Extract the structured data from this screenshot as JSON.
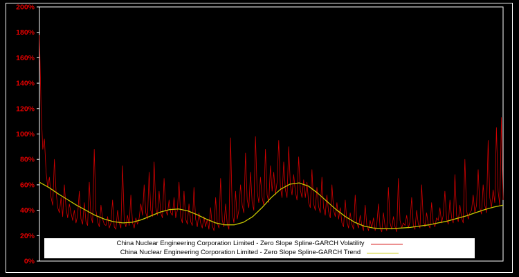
{
  "figure": {
    "background": "#000000",
    "frame_color": "#ffffff",
    "tick_label_color": "#e60000"
  },
  "chart_data": {
    "type": "line",
    "title": "",
    "xlabel": "",
    "ylabel": "",
    "ylim": [
      0,
      200
    ],
    "y_ticks": [
      "0%",
      "20%",
      "40%",
      "60%",
      "80%",
      "100%",
      "120%",
      "140%",
      "160%",
      "180%",
      "200%"
    ],
    "x_axis_visible_labels": [],
    "grid": false,
    "legend_position": "bottom-center",
    "series": [
      {
        "name": "China Nuclear Engineering Corporation Limited - Zero Slope Spline-GARCH Volatility",
        "color": "#d40000",
        "line_width": 0.8,
        "values": [
          178,
          120,
          88,
          96,
          70,
          58,
          66,
          50,
          44,
          80,
          55,
          42,
          38,
          50,
          35,
          60,
          42,
          34,
          45,
          38,
          32,
          40,
          30,
          36,
          55,
          33,
          29,
          46,
          31,
          28,
          62,
          35,
          30,
          88,
          40,
          31,
          27,
          44,
          33,
          29,
          28,
          35,
          26,
          30,
          48,
          27,
          25,
          40,
          30,
          26,
          75,
          32,
          27,
          36,
          28,
          52,
          30,
          26,
          34,
          29,
          34,
          45,
          36,
          60,
          38,
          33,
          70,
          40,
          35,
          78,
          42,
          36,
          55,
          38,
          34,
          65,
          40,
          36,
          48,
          38,
          36,
          50,
          34,
          40,
          62,
          35,
          30,
          55,
          33,
          29,
          45,
          31,
          28,
          58,
          33,
          27,
          38,
          30,
          26,
          35,
          27,
          33,
          25,
          42,
          28,
          24,
          50,
          30,
          26,
          65,
          32,
          27,
          45,
          29,
          25,
          97,
          38,
          30,
          55,
          33,
          40,
          60,
          44,
          38,
          85,
          48,
          42,
          70,
          46,
          40,
          98,
          55,
          46,
          66,
          50,
          44,
          88,
          52,
          46,
          75,
          55,
          70,
          52,
          62,
          95,
          58,
          50,
          78,
          56,
          50,
          90,
          60,
          52,
          68,
          55,
          48,
          82,
          56,
          50,
          64,
          50,
          62,
          46,
          42,
          72,
          45,
          40,
          58,
          43,
          38,
          66,
          42,
          36,
          52,
          39,
          34,
          60,
          40,
          35,
          46,
          33,
          42,
          30,
          27,
          48,
          31,
          26,
          38,
          29,
          25,
          52,
          30,
          26,
          36,
          28,
          24,
          44,
          28,
          24,
          32,
          26,
          34,
          24,
          29,
          45,
          26,
          23,
          38,
          27,
          24,
          58,
          30,
          25,
          35,
          27,
          23,
          65,
          32,
          26,
          30,
          28,
          36,
          26,
          31,
          50,
          28,
          25,
          40,
          29,
          26,
          60,
          32,
          27,
          38,
          29,
          26,
          46,
          30,
          27,
          34,
          32,
          42,
          30,
          36,
          55,
          33,
          29,
          48,
          34,
          30,
          68,
          36,
          31,
          44,
          34,
          30,
          80,
          40,
          33,
          38,
          40,
          52,
          38,
          44,
          72,
          42,
          37,
          60,
          44,
          38,
          95,
          50,
          42,
          56,
          46,
          105,
          55,
          44,
          113,
          48
        ]
      },
      {
        "name": "China Nuclear Engineering Corporation Limited - Zero Slope Spline-GARCH Trend",
        "color": "#c8c800",
        "line_width": 1.3,
        "values": [
          62,
          58,
          53,
          48.5,
          44,
          40,
          36,
          33,
          31,
          30,
          30.5,
          32.5,
          35.5,
          38.5,
          40.5,
          41,
          39.5,
          36.5,
          33,
          30,
          28.5,
          28.5,
          30.5,
          35,
          42,
          50,
          56.5,
          60.5,
          61.5,
          59,
          53.5,
          47,
          40.5,
          35,
          30.5,
          27.5,
          26,
          25.5,
          25.5,
          26,
          26.5,
          27.5,
          28.5,
          30,
          31.5,
          33.5,
          35.5,
          38,
          40.5,
          42.5,
          44
        ]
      }
    ]
  }
}
